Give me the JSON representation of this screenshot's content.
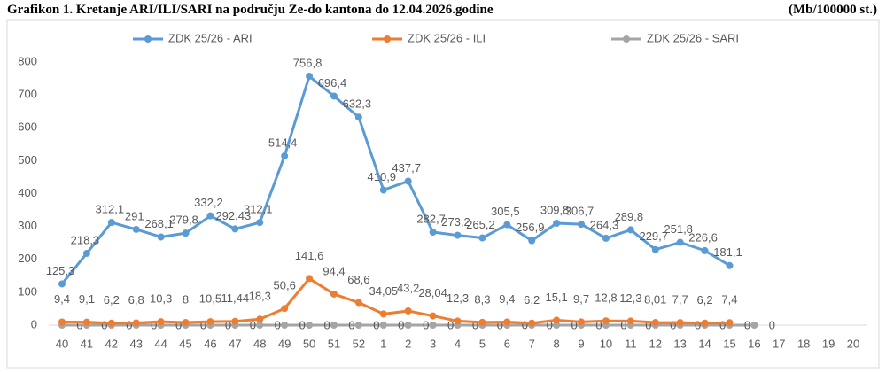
{
  "chart_data": {
    "type": "line",
    "title": "Grafikon 1. Kretanje ARI/ILI/SARI na području Ze-do kantona do 12.04.2026.godine",
    "subtitle": "(Mb/100000 st.)",
    "categories": [
      "40",
      "41",
      "42",
      "43",
      "44",
      "45",
      "46",
      "47",
      "48",
      "49",
      "50",
      "51",
      "52",
      "1",
      "2",
      "3",
      "4",
      "5",
      "6",
      "7",
      "8",
      "9",
      "10",
      "11",
      "12",
      "13",
      "14",
      "15",
      "16",
      "17",
      "18",
      "19",
      "20"
    ],
    "series": [
      {
        "name": "ZDK 25/26 - ARI",
        "color": "#5b9bd5",
        "values": [
          125.3,
          218.3,
          312.1,
          291,
          268.1,
          279.8,
          332.2,
          292.43,
          312.1,
          514.4,
          756.8,
          696.4,
          632.3,
          410.9,
          437.7,
          282.7,
          273.2,
          265.2,
          305.5,
          256.9,
          309.8,
          306.7,
          264.3,
          289.8,
          229.7,
          251.8,
          226.6,
          181.1,
          null,
          null,
          null,
          null,
          null
        ],
        "value_labels": [
          "125,3",
          "218,3",
          "312,1",
          "291",
          "268,1",
          "279,8",
          "332,2",
          "292,43",
          "312,1",
          "514,4",
          "756,8",
          "696,4",
          "632,3",
          "410,9",
          "437,7",
          "282,7",
          "273,2",
          "265,2",
          "305,5",
          "256,9",
          "309,8",
          "306,7",
          "264,3",
          "289,8",
          "229,7",
          "251,8",
          "226,6",
          "181,1",
          null,
          null,
          null,
          null,
          null
        ]
      },
      {
        "name": "ZDK 25/26 - ILI",
        "color": "#ed7d31",
        "values": [
          9.4,
          9.1,
          6.2,
          6.8,
          10.3,
          8,
          10.5,
          11.44,
          18.3,
          50.6,
          141.6,
          94.4,
          68.6,
          34.05,
          43.2,
          28.04,
          12.3,
          8.3,
          9.4,
          6.2,
          15.1,
          9.7,
          12.8,
          12.3,
          8.01,
          7.7,
          6.2,
          7.4,
          null,
          null,
          null,
          null,
          null
        ],
        "value_labels": [
          "9,4",
          "9,1",
          "6,2",
          "6,8",
          "10,3",
          "8",
          "10,5",
          "11,44",
          "18,3",
          "50,6",
          "141,6",
          "94,4",
          "68,6",
          "34,05",
          "43,2",
          "28,04",
          "12,3",
          "8,3",
          "9,4",
          "6,2",
          "15,1",
          "9,7",
          "12,8",
          "12,3",
          "8,01",
          "7,7",
          "6,2",
          "7,4",
          null,
          null,
          null,
          null,
          null
        ]
      },
      {
        "name": "ZDK 25/26 - SARI",
        "color": "#a5a5a5",
        "values": [
          0,
          0,
          0,
          0,
          0,
          0,
          0,
          0,
          0,
          0,
          0,
          0,
          0,
          0,
          0,
          0,
          0,
          0,
          0,
          0,
          0,
          0,
          0,
          0,
          0,
          0,
          0,
          0,
          0,
          null,
          null,
          null,
          null
        ]
      }
    ],
    "ylim": [
      0,
      800
    ],
    "yticks": [
      0,
      100,
      200,
      300,
      400,
      500,
      600,
      700,
      800
    ],
    "grid": false,
    "legend": "top"
  }
}
